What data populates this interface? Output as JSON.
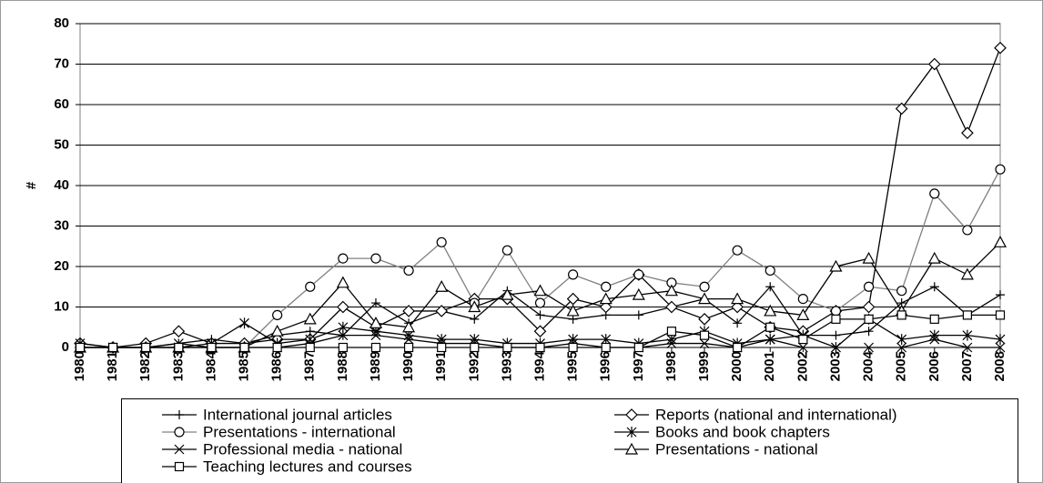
{
  "chart_data": {
    "type": "line",
    "y_label": "#",
    "categories": [
      "1980",
      "1981",
      "1982",
      "1983",
      "1984",
      "1985",
      "1986",
      "1987",
      "1988",
      "1989",
      "1990",
      "1991",
      "1992",
      "1993",
      "1994",
      "1995",
      "1996",
      "1997",
      "1998",
      "1999",
      "2000",
      "2001",
      "2002",
      "2003",
      "2004",
      "2005",
      "2006",
      "2007",
      "2008"
    ],
    "ylim": [
      0,
      80
    ],
    "yticks": [
      0,
      10,
      20,
      30,
      40,
      50,
      60,
      70,
      80
    ],
    "grid": true,
    "legend": "bottom",
    "series": [
      {
        "name": "International journal articles",
        "color": "#000000",
        "marker": "plus",
        "values": [
          0,
          0,
          0,
          1,
          2,
          1,
          3,
          4,
          3,
          11,
          6,
          9,
          7,
          14,
          8,
          7,
          8,
          8,
          10,
          12,
          6,
          15,
          3,
          3,
          4,
          11,
          15,
          8,
          13
        ]
      },
      {
        "name": "Reports (national and international)",
        "color": "#000000",
        "marker": "diamond",
        "values": [
          1,
          0,
          1,
          4,
          1,
          1,
          2,
          2,
          10,
          5,
          9,
          9,
          12,
          12,
          4,
          12,
          10,
          18,
          10,
          7,
          10,
          5,
          4,
          9,
          10,
          59,
          70,
          53,
          74
        ]
      },
      {
        "name": "Presentations - international",
        "color": "#808080",
        "marker": "circle",
        "values": [
          0,
          0,
          0,
          0,
          0,
          0,
          8,
          15,
          22,
          22,
          19,
          26,
          11,
          24,
          11,
          18,
          15,
          18,
          16,
          15,
          24,
          19,
          12,
          9,
          15,
          14,
          38,
          29,
          44
        ]
      },
      {
        "name": "Books and book chapters",
        "color": "#000000",
        "marker": "asterisk",
        "values": [
          1,
          0,
          0,
          0,
          1,
          6,
          1,
          2,
          5,
          4,
          3,
          2,
          2,
          1,
          1,
          2,
          2,
          1,
          2,
          4,
          1,
          2,
          3,
          0,
          7,
          2,
          3,
          3,
          2
        ]
      },
      {
        "name": "Professional media - national",
        "color": "#000000",
        "marker": "cross",
        "values": [
          0,
          0,
          0,
          1,
          0,
          0,
          0,
          1,
          3,
          3,
          2,
          1,
          1,
          0,
          0,
          1,
          0,
          0,
          1,
          1,
          0,
          2,
          0,
          0,
          0,
          0,
          2,
          0,
          0
        ]
      },
      {
        "name": "Presentations - national",
        "color": "#000000",
        "marker": "triangle",
        "values": [
          0,
          0,
          0,
          0,
          0,
          0,
          4,
          7,
          16,
          6,
          5,
          15,
          10,
          13,
          14,
          9,
          12,
          13,
          14,
          12,
          12,
          9,
          8,
          20,
          22,
          9,
          22,
          18,
          26
        ]
      },
      {
        "name": "Teaching lectures and courses",
        "color": "#000000",
        "marker": "square",
        "values": [
          0,
          0,
          0,
          0,
          0,
          0,
          0,
          0,
          0,
          0,
          0,
          0,
          0,
          0,
          0,
          0,
          0,
          0,
          4,
          3,
          0,
          5,
          2,
          7,
          7,
          8,
          7,
          8,
          8
        ]
      }
    ]
  }
}
